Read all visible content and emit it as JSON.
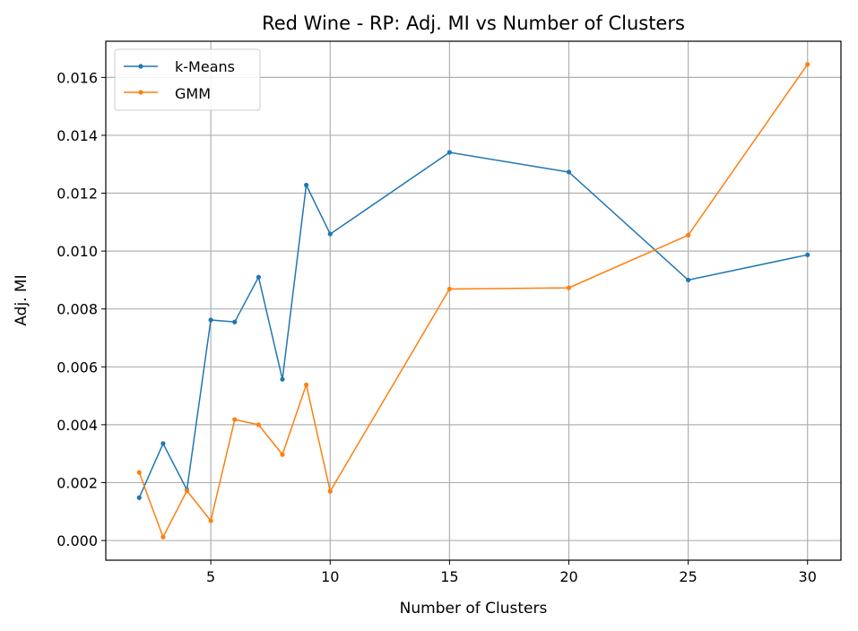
{
  "chart_data": {
    "type": "line",
    "title": "Red Wine - RP: Adj. MI vs Number of Clusters",
    "xlabel": "Number of Clusters",
    "ylabel": "Adj. MI",
    "x": [
      2,
      3,
      4,
      5,
      6,
      7,
      8,
      9,
      10,
      15,
      20,
      25,
      30
    ],
    "xlim": [
      0.6,
      31.4
    ],
    "ylim": [
      -0.00068,
      0.01725
    ],
    "xticks": [
      5,
      10,
      15,
      20,
      25,
      30
    ],
    "yticks": [
      0.0,
      0.002,
      0.004,
      0.006,
      0.008,
      0.01,
      0.012,
      0.014,
      0.016
    ],
    "ytick_labels": [
      "0.000",
      "0.002",
      "0.004",
      "0.006",
      "0.008",
      "0.010",
      "0.012",
      "0.014",
      "0.016"
    ],
    "grid": true,
    "legend_position": "top-left",
    "series": [
      {
        "name": "k-Means",
        "color": "#1f77b4",
        "values": [
          0.00148,
          0.00335,
          0.00175,
          0.00762,
          0.00755,
          0.0091,
          0.00557,
          0.01228,
          0.01059,
          0.01341,
          0.01273,
          0.009,
          0.00987
        ]
      },
      {
        "name": "GMM",
        "color": "#ff7f0e",
        "values": [
          0.00235,
          0.00012,
          0.00172,
          0.00068,
          0.00418,
          0.004,
          0.00297,
          0.00538,
          0.0017,
          0.00869,
          0.00873,
          0.01055,
          0.01645
        ]
      }
    ]
  }
}
